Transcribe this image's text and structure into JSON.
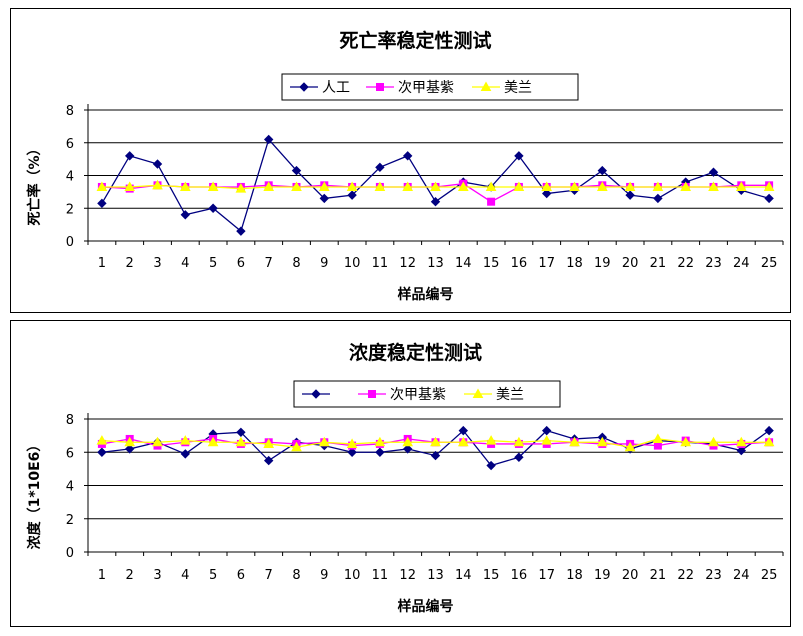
{
  "chart_data": [
    {
      "type": "line",
      "title": "死亡率稳定性测试",
      "xlabel": "样品编号",
      "ylabel": "死亡率（%）",
      "ylim": [
        0,
        8
      ],
      "yticks": [
        0,
        2,
        4,
        6,
        8
      ],
      "grid": true,
      "legend": "top-center",
      "categories": [
        "1",
        "2",
        "3",
        "4",
        "5",
        "6",
        "7",
        "8",
        "9",
        "10",
        "11",
        "12",
        "13",
        "14",
        "15",
        "16",
        "17",
        "18",
        "19",
        "20",
        "21",
        "22",
        "23",
        "24",
        "25"
      ],
      "series": [
        {
          "name": "人工",
          "color": "#000080",
          "marker": "diamond",
          "values": [
            2.3,
            5.2,
            4.7,
            1.6,
            2.0,
            0.6,
            6.2,
            4.3,
            2.6,
            2.8,
            4.5,
            5.2,
            2.4,
            3.6,
            3.3,
            5.2,
            2.9,
            3.1,
            4.3,
            2.8,
            2.6,
            3.6,
            4.2,
            3.1,
            2.6
          ]
        },
        {
          "name": "次甲基紫",
          "color": "#ff00ff",
          "marker": "square",
          "values": [
            3.3,
            3.2,
            3.4,
            3.3,
            3.3,
            3.3,
            3.4,
            3.3,
            3.4,
            3.3,
            3.3,
            3.3,
            3.3,
            3.5,
            2.4,
            3.3,
            3.3,
            3.3,
            3.4,
            3.3,
            3.3,
            3.3,
            3.3,
            3.4,
            3.4
          ]
        },
        {
          "name": "美兰",
          "color": "#ffff00",
          "marker": "triangle",
          "values": [
            3.3,
            3.3,
            3.4,
            3.3,
            3.3,
            3.2,
            3.3,
            3.3,
            3.3,
            3.3,
            3.3,
            3.3,
            3.3,
            3.3,
            3.3,
            3.3,
            3.3,
            3.3,
            3.3,
            3.3,
            3.3,
            3.3,
            3.3,
            3.3,
            3.3
          ]
        }
      ]
    },
    {
      "type": "line",
      "title": "浓度稳定性测试",
      "xlabel": "样品编号",
      "ylabel": "浓度（1*10E6）",
      "ylim": [
        0,
        8
      ],
      "yticks": [
        0,
        2,
        4,
        6,
        8
      ],
      "grid": true,
      "legend": "top-center",
      "categories": [
        "1",
        "2",
        "3",
        "4",
        "5",
        "6",
        "7",
        "8",
        "9",
        "10",
        "11",
        "12",
        "13",
        "14",
        "15",
        "16",
        "17",
        "18",
        "19",
        "20",
        "21",
        "22",
        "23",
        "24",
        "25"
      ],
      "series": [
        {
          "name": "",
          "color": "#000080",
          "marker": "diamond",
          "values": [
            6.0,
            6.2,
            6.6,
            5.9,
            7.1,
            7.2,
            5.5,
            6.6,
            6.4,
            6.0,
            6.0,
            6.2,
            5.8,
            7.3,
            5.2,
            5.7,
            7.3,
            6.8,
            6.9,
            6.2,
            6.7,
            6.6,
            6.5,
            6.1,
            7.3
          ]
        },
        {
          "name": "次甲基紫",
          "color": "#ff00ff",
          "marker": "square",
          "values": [
            6.5,
            6.8,
            6.4,
            6.6,
            6.8,
            6.5,
            6.6,
            6.5,
            6.6,
            6.4,
            6.5,
            6.8,
            6.6,
            6.6,
            6.5,
            6.5,
            6.5,
            6.6,
            6.5,
            6.5,
            6.4,
            6.7,
            6.4,
            6.5,
            6.6
          ]
        },
        {
          "name": "美兰",
          "color": "#ffff00",
          "marker": "triangle",
          "values": [
            6.7,
            6.6,
            6.6,
            6.7,
            6.6,
            6.6,
            6.5,
            6.3,
            6.6,
            6.5,
            6.6,
            6.6,
            6.6,
            6.6,
            6.7,
            6.6,
            6.7,
            6.6,
            6.6,
            6.3,
            6.8,
            6.6,
            6.6,
            6.6,
            6.6
          ]
        }
      ]
    }
  ]
}
